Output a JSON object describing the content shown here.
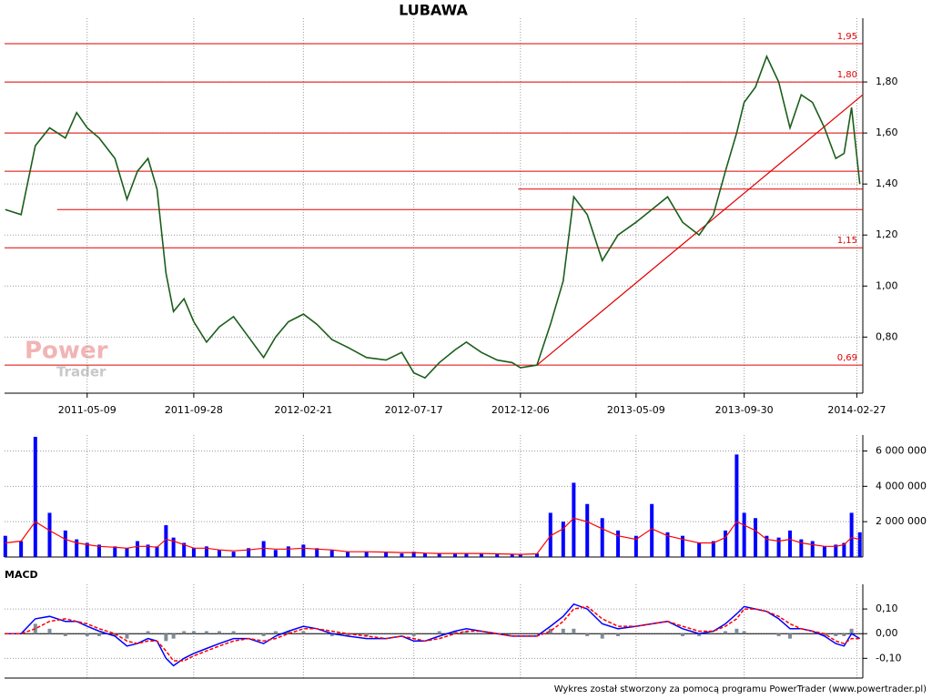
{
  "chart_data": [
    {
      "type": "line",
      "title": "LUBAWA",
      "watermark": [
        "Power",
        "Trader"
      ],
      "xlim": [
        "2011-01-19",
        "2014-03-07"
      ],
      "xticks": [
        "2011-05-09",
        "2011-09-28",
        "2012-02-21",
        "2012-07-17",
        "2012-12-06",
        "2013-05-09",
        "2013-09-30",
        "2014-02-27"
      ],
      "ylim": [
        0.58,
        2.05
      ],
      "yticks": [
        {
          "value": 0.8,
          "label": "0,80"
        },
        {
          "value": 1.0,
          "label": "1,00"
        },
        {
          "value": 1.2,
          "label": "1,20"
        },
        {
          "value": 1.4,
          "label": "1,40"
        },
        {
          "value": 1.6,
          "label": "1,60"
        },
        {
          "value": 1.8,
          "label": "1,80"
        }
      ],
      "grid": true,
      "color": "#1b5e1b",
      "x": [
        "2011-01-20",
        "2011-02-10",
        "2011-03-01",
        "2011-03-20",
        "2011-04-10",
        "2011-04-25",
        "2011-05-09",
        "2011-05-25",
        "2011-06-15",
        "2011-07-01",
        "2011-07-15",
        "2011-07-29",
        "2011-08-10",
        "2011-08-22",
        "2011-09-01",
        "2011-09-15",
        "2011-09-28",
        "2011-10-15",
        "2011-11-01",
        "2011-11-20",
        "2011-12-10",
        "2011-12-30",
        "2012-01-15",
        "2012-02-01",
        "2012-02-21",
        "2012-03-10",
        "2012-03-30",
        "2012-04-20",
        "2012-05-15",
        "2012-06-10",
        "2012-07-01",
        "2012-07-17",
        "2012-08-01",
        "2012-08-20",
        "2012-09-10",
        "2012-09-25",
        "2012-10-15",
        "2012-11-05",
        "2012-11-25",
        "2012-12-06",
        "2012-12-28",
        "2013-01-15",
        "2013-02-01",
        "2013-02-15",
        "2013-03-05",
        "2013-03-25",
        "2013-04-15",
        "2013-05-09",
        "2013-05-30",
        "2013-06-20",
        "2013-07-10",
        "2013-08-01",
        "2013-08-20",
        "2013-09-05",
        "2013-09-20",
        "2013-09-30",
        "2013-10-15",
        "2013-10-30",
        "2013-11-15",
        "2013-11-30",
        "2013-12-15",
        "2013-12-30",
        "2014-01-15",
        "2014-01-30",
        "2014-02-10",
        "2014-02-20",
        "2014-03-03"
      ],
      "values": [
        1.3,
        1.28,
        1.55,
        1.62,
        1.58,
        1.68,
        1.62,
        1.58,
        1.5,
        1.34,
        1.45,
        1.5,
        1.38,
        1.05,
        0.9,
        0.95,
        0.86,
        0.78,
        0.84,
        0.88,
        0.8,
        0.72,
        0.8,
        0.86,
        0.89,
        0.85,
        0.79,
        0.76,
        0.72,
        0.71,
        0.74,
        0.66,
        0.64,
        0.7,
        0.75,
        0.78,
        0.74,
        0.71,
        0.7,
        0.68,
        0.69,
        0.85,
        1.02,
        1.35,
        1.28,
        1.1,
        1.2,
        1.25,
        1.3,
        1.35,
        1.25,
        1.2,
        1.28,
        1.45,
        1.6,
        1.72,
        1.78,
        1.9,
        1.8,
        1.62,
        1.75,
        1.72,
        1.62,
        1.5,
        1.52,
        1.7,
        1.4
      ],
      "level_color": "#e00000",
      "levels": [
        {
          "value": 1.95,
          "label": "1,95"
        },
        {
          "value": 1.8,
          "label": "1,80"
        },
        1.6,
        1.45,
        {
          "value": 1.38,
          "from": "2012-12-03"
        },
        {
          "value": 1.3,
          "from": "2011-03-30"
        },
        {
          "value": 1.15,
          "label": "1,15"
        },
        {
          "value": 0.69,
          "label": "0,69"
        }
      ],
      "trendline": {
        "x": [
          "2012-12-28",
          "2014-03-07"
        ],
        "y": [
          0.69,
          1.75
        ]
      }
    },
    {
      "type": "bar",
      "xlim": [
        "2011-01-19",
        "2014-03-07"
      ],
      "ylim": [
        0,
        6900000
      ],
      "yticks": [
        {
          "value": 2000000,
          "label": "2 000 000"
        },
        {
          "value": 4000000,
          "label": "4 000 000"
        },
        {
          "value": 6000000,
          "label": "6 000 000"
        }
      ],
      "grid": true,
      "color": "#0000ff",
      "line_color": "#ff0000",
      "x": [
        "2011-01-20",
        "2011-02-10",
        "2011-03-01",
        "2011-03-20",
        "2011-04-10",
        "2011-04-25",
        "2011-05-09",
        "2011-05-25",
        "2011-06-15",
        "2011-07-01",
        "2011-07-15",
        "2011-07-29",
        "2011-08-10",
        "2011-08-22",
        "2011-09-01",
        "2011-09-15",
        "2011-09-28",
        "2011-10-15",
        "2011-11-01",
        "2011-11-20",
        "2011-12-10",
        "2011-12-30",
        "2012-01-15",
        "2012-02-01",
        "2012-02-21",
        "2012-03-10",
        "2012-03-30",
        "2012-04-20",
        "2012-05-15",
        "2012-06-10",
        "2012-07-01",
        "2012-07-17",
        "2012-08-01",
        "2012-08-20",
        "2012-09-10",
        "2012-09-25",
        "2012-10-15",
        "2012-11-05",
        "2012-11-25",
        "2012-12-06",
        "2012-12-28",
        "2013-01-15",
        "2013-02-01",
        "2013-02-15",
        "2013-03-05",
        "2013-03-25",
        "2013-04-15",
        "2013-05-09",
        "2013-05-30",
        "2013-06-20",
        "2013-07-10",
        "2013-08-01",
        "2013-08-20",
        "2013-09-05",
        "2013-09-20",
        "2013-09-30",
        "2013-10-15",
        "2013-10-30",
        "2013-11-15",
        "2013-11-30",
        "2013-12-15",
        "2013-12-30",
        "2014-01-15",
        "2014-01-30",
        "2014-02-10",
        "2014-02-20",
        "2014-03-03"
      ],
      "values": [
        1200000,
        900000,
        6800000,
        2500000,
        1500000,
        1000000,
        800000,
        700000,
        600000,
        500000,
        900000,
        700000,
        600000,
        1800000,
        1100000,
        800000,
        500000,
        600000,
        400000,
        300000,
        500000,
        900000,
        400000,
        600000,
        700000,
        500000,
        400000,
        300000,
        300000,
        300000,
        200000,
        300000,
        200000,
        200000,
        200000,
        200000,
        200000,
        200000,
        150000,
        150000,
        200000,
        2500000,
        2000000,
        4200000,
        3000000,
        2200000,
        1500000,
        1200000,
        3000000,
        1400000,
        1200000,
        800000,
        900000,
        1500000,
        5800000,
        2500000,
        2200000,
        1200000,
        1100000,
        1500000,
        1000000,
        900000,
        600000,
        700000,
        800000,
        2500000,
        1400000
      ],
      "line_values": [
        800000,
        900000,
        2000000,
        1500000,
        1000000,
        800000,
        700000,
        600000,
        550000,
        500000,
        600000,
        600000,
        550000,
        1000000,
        900000,
        700000,
        500000,
        500000,
        400000,
        350000,
        400000,
        500000,
        450000,
        450000,
        500000,
        450000,
        400000,
        300000,
        300000,
        280000,
        250000,
        250000,
        220000,
        200000,
        200000,
        200000,
        200000,
        180000,
        160000,
        150000,
        180000,
        1200000,
        1600000,
        2200000,
        2000000,
        1600000,
        1200000,
        1000000,
        1600000,
        1200000,
        1000000,
        800000,
        800000,
        1100000,
        2000000,
        1800000,
        1500000,
        1000000,
        900000,
        1000000,
        800000,
        700000,
        600000,
        600000,
        700000,
        1100000,
        1000000
      ]
    },
    {
      "type": "macd",
      "title": "MACD",
      "xlim": [
        "2011-01-19",
        "2014-03-07"
      ],
      "ylim": [
        -0.18,
        0.2
      ],
      "yticks": [
        {
          "value": -0.1,
          "label": "-0,10"
        },
        {
          "value": 0,
          "label": "0,00"
        },
        {
          "value": 0.1,
          "label": "0,10"
        }
      ],
      "grid": true,
      "x": [
        "2011-01-20",
        "2011-02-10",
        "2011-03-01",
        "2011-03-20",
        "2011-04-10",
        "2011-04-25",
        "2011-05-09",
        "2011-05-25",
        "2011-06-15",
        "2011-07-01",
        "2011-07-15",
        "2011-07-29",
        "2011-08-10",
        "2011-08-22",
        "2011-09-01",
        "2011-09-15",
        "2011-09-28",
        "2011-10-15",
        "2011-11-01",
        "2011-11-20",
        "2011-12-10",
        "2011-12-30",
        "2012-01-15",
        "2012-02-01",
        "2012-02-21",
        "2012-03-10",
        "2012-03-30",
        "2012-04-20",
        "2012-05-15",
        "2012-06-10",
        "2012-07-01",
        "2012-07-17",
        "2012-08-01",
        "2012-08-20",
        "2012-09-10",
        "2012-09-25",
        "2012-10-15",
        "2012-11-05",
        "2012-11-25",
        "2012-12-06",
        "2012-12-28",
        "2013-01-15",
        "2013-02-01",
        "2013-02-15",
        "2013-03-05",
        "2013-03-25",
        "2013-04-15",
        "2013-05-09",
        "2013-05-30",
        "2013-06-20",
        "2013-07-10",
        "2013-08-01",
        "2013-08-20",
        "2013-09-05",
        "2013-09-20",
        "2013-09-30",
        "2013-10-15",
        "2013-10-30",
        "2013-11-15",
        "2013-11-30",
        "2013-12-15",
        "2013-12-30",
        "2014-01-15",
        "2014-01-30",
        "2014-02-10",
        "2014-02-20",
        "2014-03-03"
      ],
      "histogram": {
        "color": "#7f8c99",
        "values": [
          0,
          0,
          0.04,
          0.02,
          -0.01,
          0,
          -0.01,
          -0.01,
          -0.01,
          -0.02,
          0,
          0.01,
          0,
          -0.03,
          -0.02,
          0.01,
          0.01,
          0.01,
          0.01,
          0.01,
          0,
          -0.01,
          0.01,
          0.01,
          0.01,
          0,
          -0.01,
          -0.01,
          -0.01,
          0,
          0,
          -0.01,
          0,
          0.01,
          0.01,
          0.01,
          0,
          0,
          0,
          0,
          0,
          0.02,
          0.02,
          0.02,
          -0.01,
          -0.02,
          -0.01,
          0,
          0,
          0,
          -0.01,
          -0.01,
          0,
          0.01,
          0.02,
          0.01,
          0,
          0,
          -0.01,
          -0.02,
          0,
          0,
          -0.01,
          -0.01,
          -0.01,
          0.02,
          0
        ]
      },
      "series": [
        {
          "color": "#0000ff",
          "dashed": false,
          "values": [
            0,
            0,
            0.06,
            0.07,
            0.05,
            0.05,
            0.03,
            0.01,
            -0.01,
            -0.05,
            -0.04,
            -0.02,
            -0.03,
            -0.1,
            -0.13,
            -0.1,
            -0.08,
            -0.06,
            -0.04,
            -0.02,
            -0.02,
            -0.04,
            -0.01,
            0.01,
            0.03,
            0.02,
            0,
            -0.01,
            -0.02,
            -0.02,
            -0.01,
            -0.03,
            -0.03,
            -0.01,
            0.01,
            0.02,
            0.01,
            0,
            -0.01,
            -0.01,
            -0.01,
            0.03,
            0.07,
            0.12,
            0.1,
            0.04,
            0.02,
            0.03,
            0.04,
            0.05,
            0.02,
            0,
            0.01,
            0.04,
            0.08,
            0.11,
            0.1,
            0.09,
            0.06,
            0.02,
            0.02,
            0.01,
            -0.01,
            -0.04,
            -0.05,
            0,
            -0.02
          ]
        },
        {
          "color": "#ff0000",
          "dashed": true,
          "values": [
            0,
            0,
            0.02,
            0.05,
            0.06,
            0.05,
            0.04,
            0.02,
            0,
            -0.03,
            -0.04,
            -0.03,
            -0.03,
            -0.07,
            -0.11,
            -0.11,
            -0.09,
            -0.07,
            -0.05,
            -0.03,
            -0.02,
            -0.03,
            -0.02,
            0,
            0.02,
            0.02,
            0.01,
            0,
            -0.01,
            -0.02,
            -0.01,
            -0.02,
            -0.03,
            -0.02,
            0,
            0.01,
            0.01,
            0,
            -0.01,
            -0.01,
            -0.01,
            0.01,
            0.05,
            0.1,
            0.11,
            0.06,
            0.03,
            0.03,
            0.04,
            0.05,
            0.03,
            0.01,
            0.01,
            0.03,
            0.06,
            0.1,
            0.1,
            0.09,
            0.07,
            0.04,
            0.02,
            0.01,
            0,
            -0.03,
            -0.04,
            -0.02,
            -0.02
          ]
        }
      ]
    }
  ],
  "footer": "Wykres został stworzony za pomocą programu PowerTrader (www.powertrader.pl)"
}
